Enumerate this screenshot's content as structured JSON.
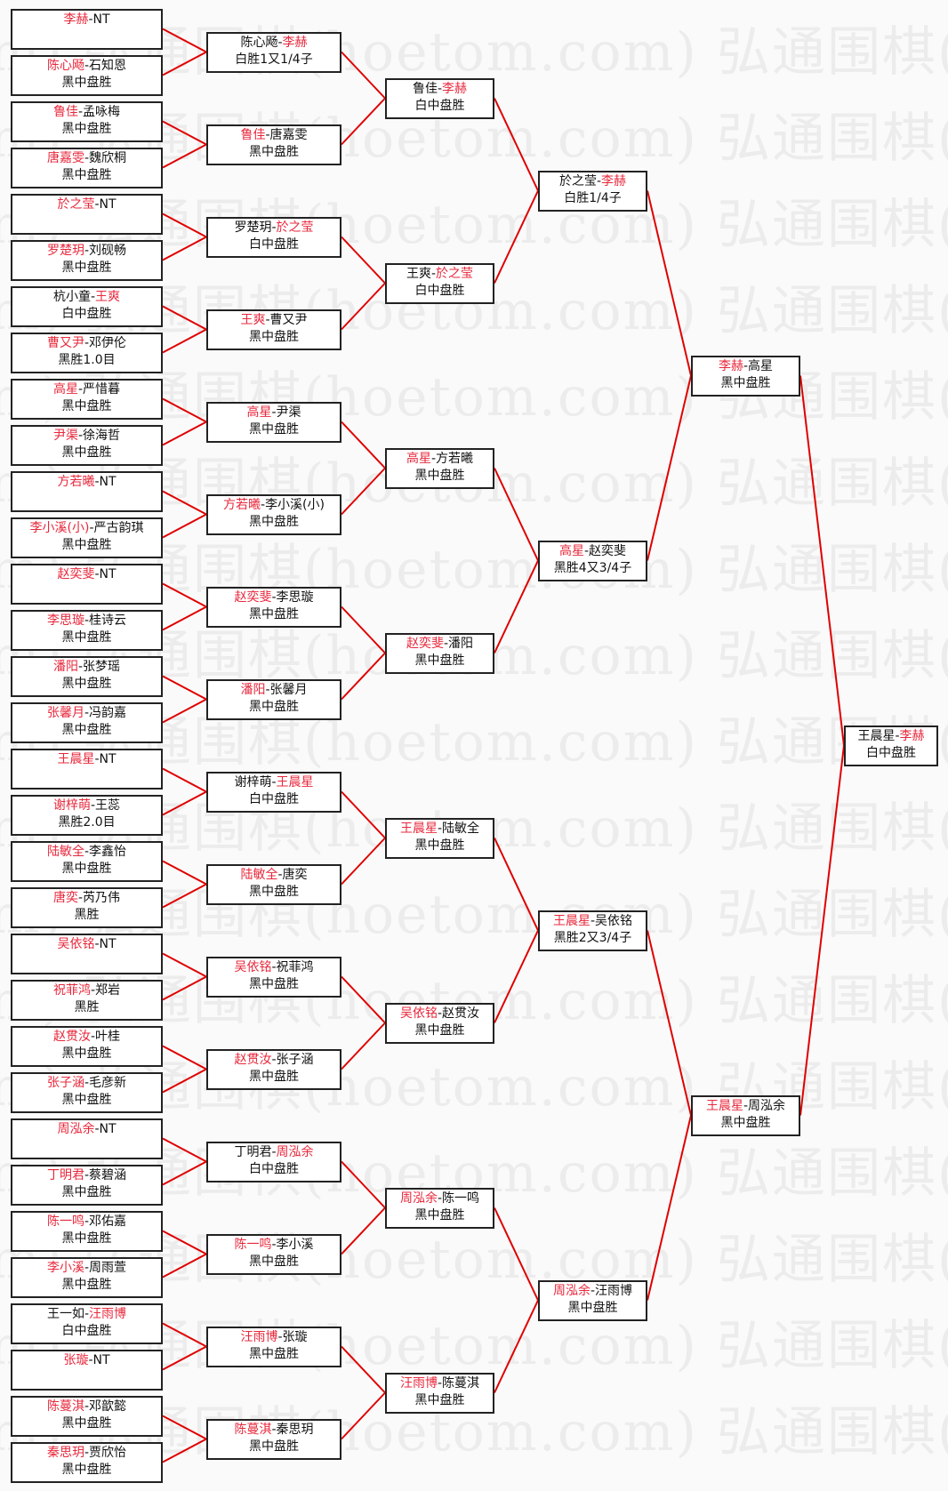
{
  "watermark": "弘通围棋(hoetom.com)",
  "separator": "-",
  "colors": {
    "winner": "#e8283c",
    "loser": "#111111",
    "connector": "#e00000"
  },
  "rounds": [
    [
      {
        "p": [
          "李赫",
          "NT"
        ],
        "w": 0,
        "result": ""
      },
      {
        "p": [
          "陈心飏",
          "石知恩"
        ],
        "w": 0,
        "result": "黑中盘胜"
      },
      {
        "p": [
          "鲁佳",
          "孟咏梅"
        ],
        "w": 0,
        "result": "黑中盘胜"
      },
      {
        "p": [
          "唐嘉雯",
          "魏欣桐"
        ],
        "w": 0,
        "result": "黑中盘胜"
      },
      {
        "p": [
          "於之莹",
          "NT"
        ],
        "w": 0,
        "result": ""
      },
      {
        "p": [
          "罗楚玥",
          "刘砚畅"
        ],
        "w": 0,
        "result": "黑中盘胜"
      },
      {
        "p": [
          "杭小童",
          "王爽"
        ],
        "w": 1,
        "result": "白中盘胜"
      },
      {
        "p": [
          "曹又尹",
          "邓伊伦"
        ],
        "w": 0,
        "result": "黑胜1.0目"
      },
      {
        "p": [
          "高星",
          "严惜暮"
        ],
        "w": 0,
        "result": "黑中盘胜"
      },
      {
        "p": [
          "尹渠",
          "徐海哲"
        ],
        "w": 0,
        "result": "黑中盘胜"
      },
      {
        "p": [
          "方若曦",
          "NT"
        ],
        "w": 0,
        "result": ""
      },
      {
        "p": [
          "李小溪(小)",
          "严古韵琪"
        ],
        "w": 0,
        "result": "黑中盘胜"
      },
      {
        "p": [
          "赵奕斐",
          "NT"
        ],
        "w": 0,
        "result": ""
      },
      {
        "p": [
          "李思璇",
          "桂诗云"
        ],
        "w": 0,
        "result": "黑中盘胜"
      },
      {
        "p": [
          "潘阳",
          "张梦瑶"
        ],
        "w": 0,
        "result": "黑中盘胜"
      },
      {
        "p": [
          "张馨月",
          "冯韵嘉"
        ],
        "w": 0,
        "result": "黑中盘胜"
      },
      {
        "p": [
          "王晨星",
          "NT"
        ],
        "w": 0,
        "result": ""
      },
      {
        "p": [
          "谢梓萌",
          "王蕊"
        ],
        "w": 0,
        "result": "黑胜2.0目"
      },
      {
        "p": [
          "陆敏全",
          "李鑫怡"
        ],
        "w": 0,
        "result": "黑中盘胜"
      },
      {
        "p": [
          "唐奕",
          "芮乃伟"
        ],
        "w": 0,
        "result": "黑胜"
      },
      {
        "p": [
          "吴依铭",
          "NT"
        ],
        "w": 0,
        "result": ""
      },
      {
        "p": [
          "祝菲鸿",
          "郑岩"
        ],
        "w": 0,
        "result": "黑胜"
      },
      {
        "p": [
          "赵贯汝",
          "叶桂"
        ],
        "w": 0,
        "result": "黑中盘胜"
      },
      {
        "p": [
          "张子涵",
          "毛彦新"
        ],
        "w": 0,
        "result": "黑中盘胜"
      },
      {
        "p": [
          "周泓余",
          "NT"
        ],
        "w": 0,
        "result": ""
      },
      {
        "p": [
          "丁明君",
          "蔡碧涵"
        ],
        "w": 0,
        "result": "黑中盘胜"
      },
      {
        "p": [
          "陈一鸣",
          "邓佑嘉"
        ],
        "w": 0,
        "result": "黑中盘胜"
      },
      {
        "p": [
          "李小溪",
          "周雨萱"
        ],
        "w": 0,
        "result": "黑中盘胜"
      },
      {
        "p": [
          "王一如",
          "汪雨博"
        ],
        "w": 1,
        "result": "白中盘胜"
      },
      {
        "p": [
          "张璇",
          "NT"
        ],
        "w": 0,
        "result": ""
      },
      {
        "p": [
          "陈蔓淇",
          "邓歆懿"
        ],
        "w": 0,
        "result": "黑中盘胜"
      },
      {
        "p": [
          "秦思玥",
          "贾欣怡"
        ],
        "w": 0,
        "result": "黑中盘胜"
      }
    ],
    [
      {
        "p": [
          "陈心飏",
          "李赫"
        ],
        "w": 1,
        "result": "白胜1又1/4子"
      },
      {
        "p": [
          "鲁佳",
          "唐嘉雯"
        ],
        "w": 0,
        "result": "黑中盘胜"
      },
      {
        "p": [
          "罗楚玥",
          "於之莹"
        ],
        "w": 1,
        "result": "白中盘胜"
      },
      {
        "p": [
          "王爽",
          "曹又尹"
        ],
        "w": 0,
        "result": "黑中盘胜"
      },
      {
        "p": [
          "高星",
          "尹渠"
        ],
        "w": 0,
        "result": "黑中盘胜"
      },
      {
        "p": [
          "方若曦",
          "李小溪(小)"
        ],
        "w": 0,
        "result": "黑中盘胜"
      },
      {
        "p": [
          "赵奕斐",
          "李思璇"
        ],
        "w": 0,
        "result": "黑中盘胜"
      },
      {
        "p": [
          "潘阳",
          "张馨月"
        ],
        "w": 0,
        "result": "黑中盘胜"
      },
      {
        "p": [
          "谢梓萌",
          "王晨星"
        ],
        "w": 1,
        "result": "白中盘胜"
      },
      {
        "p": [
          "陆敏全",
          "唐奕"
        ],
        "w": 0,
        "result": "黑中盘胜"
      },
      {
        "p": [
          "吴依铭",
          "祝菲鸿"
        ],
        "w": 0,
        "result": "黑中盘胜"
      },
      {
        "p": [
          "赵贯汝",
          "张子涵"
        ],
        "w": 0,
        "result": "黑中盘胜"
      },
      {
        "p": [
          "丁明君",
          "周泓余"
        ],
        "w": 1,
        "result": "白中盘胜"
      },
      {
        "p": [
          "陈一鸣",
          "李小溪"
        ],
        "w": 0,
        "result": "黑中盘胜"
      },
      {
        "p": [
          "汪雨博",
          "张璇"
        ],
        "w": 0,
        "result": "黑中盘胜"
      },
      {
        "p": [
          "陈蔓淇",
          "秦思玥"
        ],
        "w": 0,
        "result": "黑中盘胜"
      }
    ],
    [
      {
        "p": [
          "鲁佳",
          "李赫"
        ],
        "w": 1,
        "result": "白中盘胜"
      },
      {
        "p": [
          "王爽",
          "於之莹"
        ],
        "w": 1,
        "result": "白中盘胜"
      },
      {
        "p": [
          "高星",
          "方若曦"
        ],
        "w": 0,
        "result": "黑中盘胜"
      },
      {
        "p": [
          "赵奕斐",
          "潘阳"
        ],
        "w": 0,
        "result": "黑中盘胜"
      },
      {
        "p": [
          "王晨星",
          "陆敏全"
        ],
        "w": 0,
        "result": "黑中盘胜"
      },
      {
        "p": [
          "吴依铭",
          "赵贯汝"
        ],
        "w": 0,
        "result": "黑中盘胜"
      },
      {
        "p": [
          "周泓余",
          "陈一鸣"
        ],
        "w": 0,
        "result": "黑中盘胜"
      },
      {
        "p": [
          "汪雨博",
          "陈蔓淇"
        ],
        "w": 0,
        "result": "黑中盘胜"
      }
    ],
    [
      {
        "p": [
          "於之莹",
          "李赫"
        ],
        "w": 1,
        "result": "白胜1/4子"
      },
      {
        "p": [
          "高星",
          "赵奕斐"
        ],
        "w": 0,
        "result": "黑胜4又3/4子"
      },
      {
        "p": [
          "王晨星",
          "吴依铭"
        ],
        "w": 0,
        "result": "黑胜2又3/4子"
      },
      {
        "p": [
          "周泓余",
          "汪雨博"
        ],
        "w": 0,
        "result": "黑中盘胜"
      }
    ],
    [
      {
        "p": [
          "李赫",
          "高星"
        ],
        "w": 0,
        "result": "黑中盘胜"
      },
      {
        "p": [
          "王晨星",
          "周泓余"
        ],
        "w": 0,
        "result": "黑中盘胜"
      }
    ],
    [
      {
        "p": [
          "王晨星",
          "李赫"
        ],
        "w": 1,
        "result": "白中盘胜"
      }
    ]
  ]
}
